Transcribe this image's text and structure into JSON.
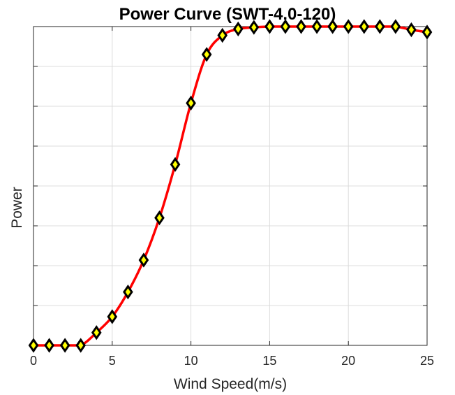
{
  "chart_data": {
    "type": "line",
    "title": "Power Curve (SWT-4.0-120)",
    "xlabel": "Wind Speed(m/s)",
    "ylabel": "Power",
    "xlim": [
      0,
      25
    ],
    "ylim": [
      0,
      4
    ],
    "xticks": [
      0,
      5,
      10,
      15,
      20,
      25
    ],
    "xtick_labels": [
      "0",
      "5",
      "10",
      "15",
      "20",
      "25"
    ],
    "yticks": [
      0,
      0.5,
      1,
      1.5,
      2,
      2.5,
      3,
      3.5,
      4
    ],
    "ytick_labels_shown": false,
    "grid": true,
    "legend": "none",
    "series": [
      {
        "x": [
          0,
          1,
          2,
          3,
          4,
          5,
          6,
          7,
          8,
          9,
          10,
          11,
          12,
          13,
          14,
          15,
          16,
          17,
          18,
          19,
          20,
          21,
          22,
          23,
          24,
          25
        ],
        "y": [
          0,
          0,
          0,
          0,
          0.16,
          0.36,
          0.67,
          1.07,
          1.6,
          2.27,
          3.04,
          3.65,
          3.89,
          3.97,
          3.99,
          4.0,
          4.0,
          4.0,
          4.0,
          4.0,
          4.0,
          4.0,
          4.0,
          4.0,
          3.96,
          3.93
        ],
        "line_color": "#ff0000",
        "marker": "diamond",
        "marker_edge_color": "#000000",
        "marker_face_color": "#ffff00"
      }
    ],
    "colors": {
      "axes": "#262626",
      "grid": "#dcdcdc",
      "background": "#ffffff"
    }
  }
}
